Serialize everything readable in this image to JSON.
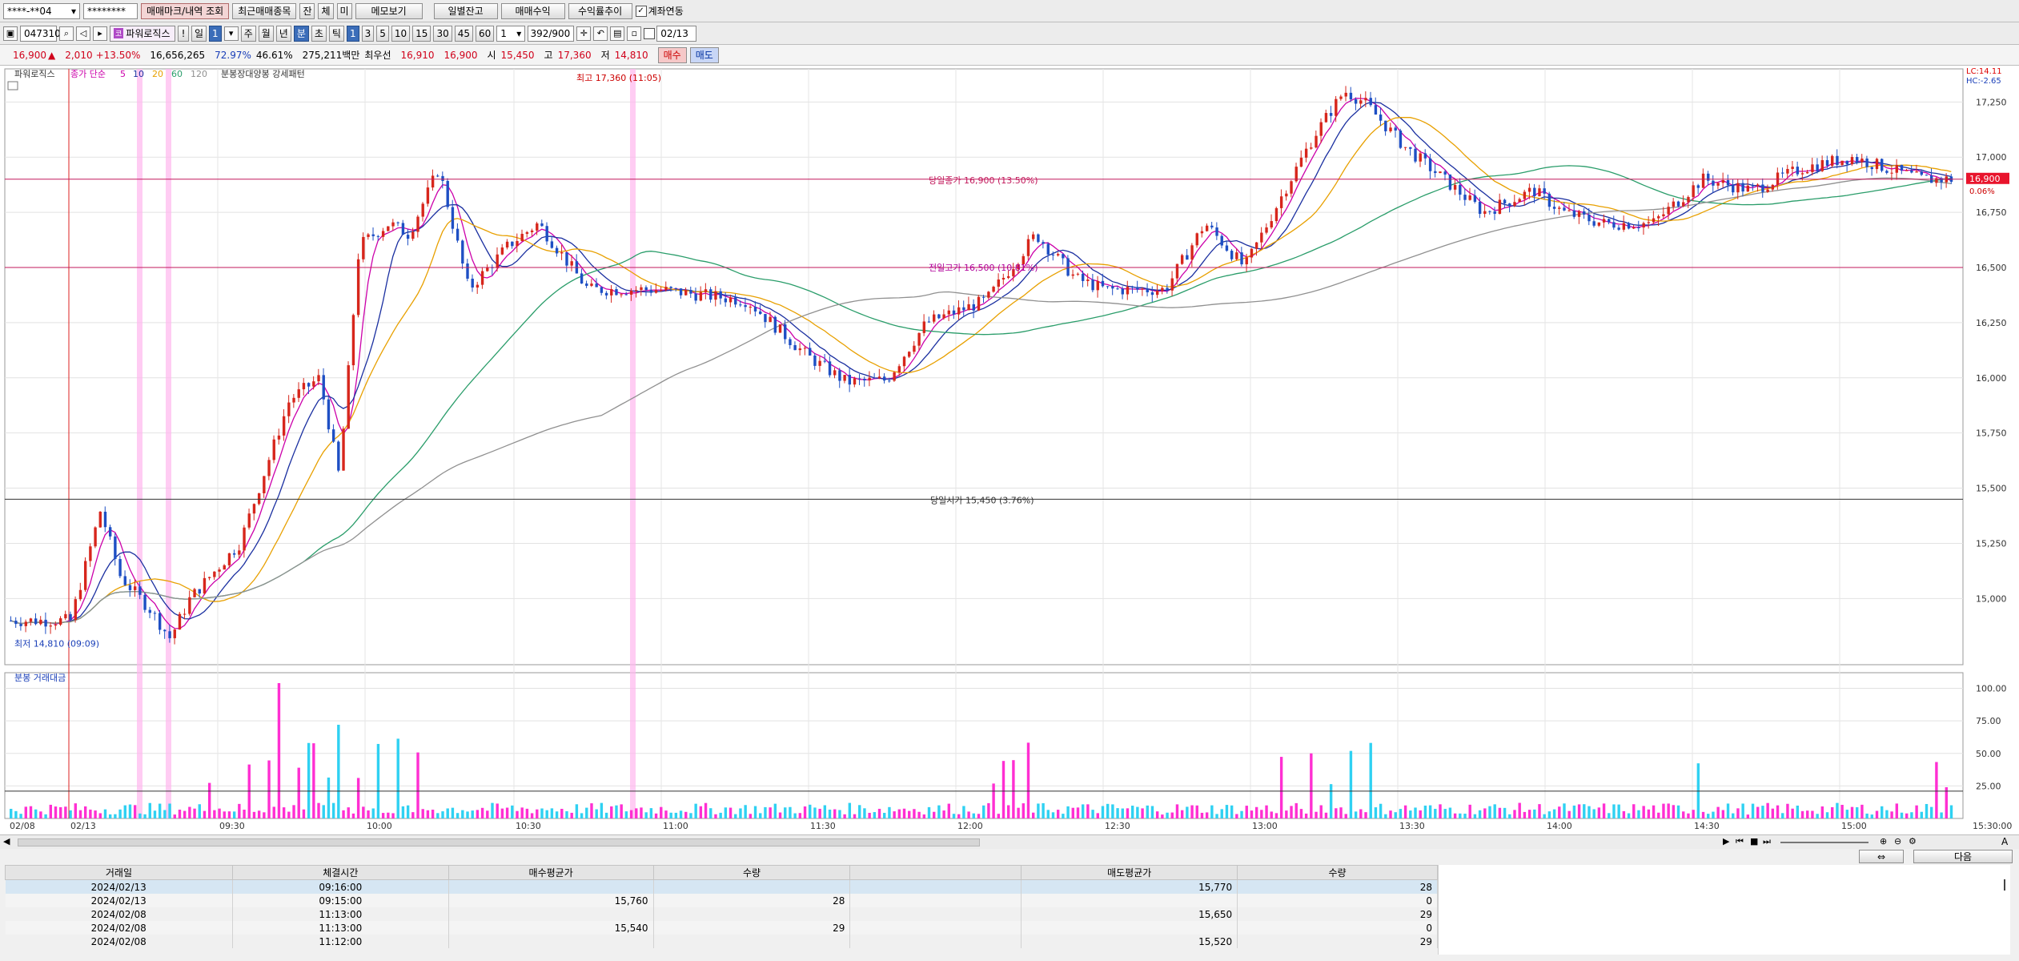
{
  "toolbar1": {
    "account": "****-**04",
    "password": "********",
    "buttons": [
      "매매마크/내역 조회",
      "최근매매종목",
      "잔",
      "체",
      "미",
      "메모보기",
      "일별잔고",
      "매매수익",
      "수익률추이"
    ],
    "link_label": "계좌연동"
  },
  "toolbar2": {
    "code": "047310",
    "name": "파워로직스",
    "periods": [
      "!",
      "일",
      "1",
      "주",
      "월",
      "년",
      "분",
      "초",
      "틱",
      "1",
      "3",
      "5",
      "10",
      "15",
      "30",
      "45",
      "60"
    ],
    "interval_value": "1",
    "count": "392/900",
    "date": "02/13"
  },
  "quote": {
    "price": "16,900",
    "change": "2,010",
    "change_pct": "+13.50%",
    "volume": "16,656,265",
    "pct1": "72.97%",
    "pct2": "46.61%",
    "amount": "275,211백만",
    "best_ask_label": "최우선",
    "best_ask": "16,910",
    "best_bid": "16,900",
    "open_label": "시",
    "open": "15,450",
    "high_label": "고",
    "high": "17,360",
    "low_label": "저",
    "low": "14,810",
    "buy_label": "매수",
    "sell_label": "매도"
  },
  "chart_data": [
    {
      "type": "candlestick",
      "title": "파워로직스",
      "legend": {
        "prefix": "종가 단순",
        "ma_periods": [
          "5",
          "10",
          "20",
          "60",
          "120"
        ],
        "ma_colors": [
          "#cc00aa",
          "#1a2fa0",
          "#e8a000",
          "#2a9d6a",
          "#909090"
        ],
        "pattern_label": "분봉장대양봉 강세패턴"
      },
      "y_axis": {
        "ticks": [
          "17,250",
          "17,000",
          "16,750",
          "16,500",
          "16,250",
          "16,000",
          "15,750",
          "15,500",
          "15,250",
          "15,000"
        ],
        "ylim": [
          14700,
          17400
        ]
      },
      "x_axis": {
        "ticks": [
          "02/08",
          "02/13",
          "09:30",
          "10:00",
          "10:30",
          "11:00",
          "11:30",
          "12:00",
          "12:30",
          "13:00",
          "13:30",
          "14:00",
          "14:30",
          "15:00",
          "15:30:00"
        ]
      },
      "annotations": {
        "high": "최고 17,360 (11:05)",
        "low": "최저 14,810 (09:09)",
        "current": "당일종가 16,900 (13.50%)",
        "prev_high": "전일고가 16,500 (10.81%)",
        "open": "당일시가 15,450 (3.76%)",
        "lc": "LC:14.11",
        "hc": "HC:-2.65",
        "price_tag": "16,900",
        "price_tag_pct": "0.06%"
      },
      "price_levels": {
        "current": 16900,
        "prev_high": 16500,
        "open": 15450,
        "high": 17360,
        "low": 14810
      },
      "colors": {
        "up": "#d7261c",
        "down": "#1e4fc4",
        "highlight": "#ffb6ee"
      },
      "candle_count": 392
    },
    {
      "type": "bar",
      "title": "분봉 거래대금",
      "y_axis": {
        "ticks": [
          "100.00",
          "75.00",
          "50.00",
          "25.00"
        ],
        "ylim": [
          0,
          112
        ]
      },
      "colors": {
        "up": "#ff2fd2",
        "down": "#2fd1f2"
      }
    }
  ],
  "bottom_nav": {
    "next_label": "다음"
  },
  "trade_table": {
    "headers": [
      "거래일",
      "체결시간",
      "매수평균가",
      "수량",
      "",
      "매도평균가",
      "수량"
    ],
    "rows": [
      [
        "2024/02/13",
        "09:16:00",
        "",
        "",
        "",
        "15,770",
        "28"
      ],
      [
        "2024/02/13",
        "09:15:00",
        "15,760",
        "28",
        "",
        "",
        "0"
      ],
      [
        "2024/02/08",
        "11:13:00",
        "",
        "",
        "",
        "15,650",
        "29"
      ],
      [
        "2024/02/08",
        "11:13:00",
        "15,540",
        "29",
        "",
        "",
        "0"
      ],
      [
        "2024/02/08",
        "11:12:00",
        "",
        "",
        "",
        "15,520",
        "29"
      ]
    ]
  }
}
